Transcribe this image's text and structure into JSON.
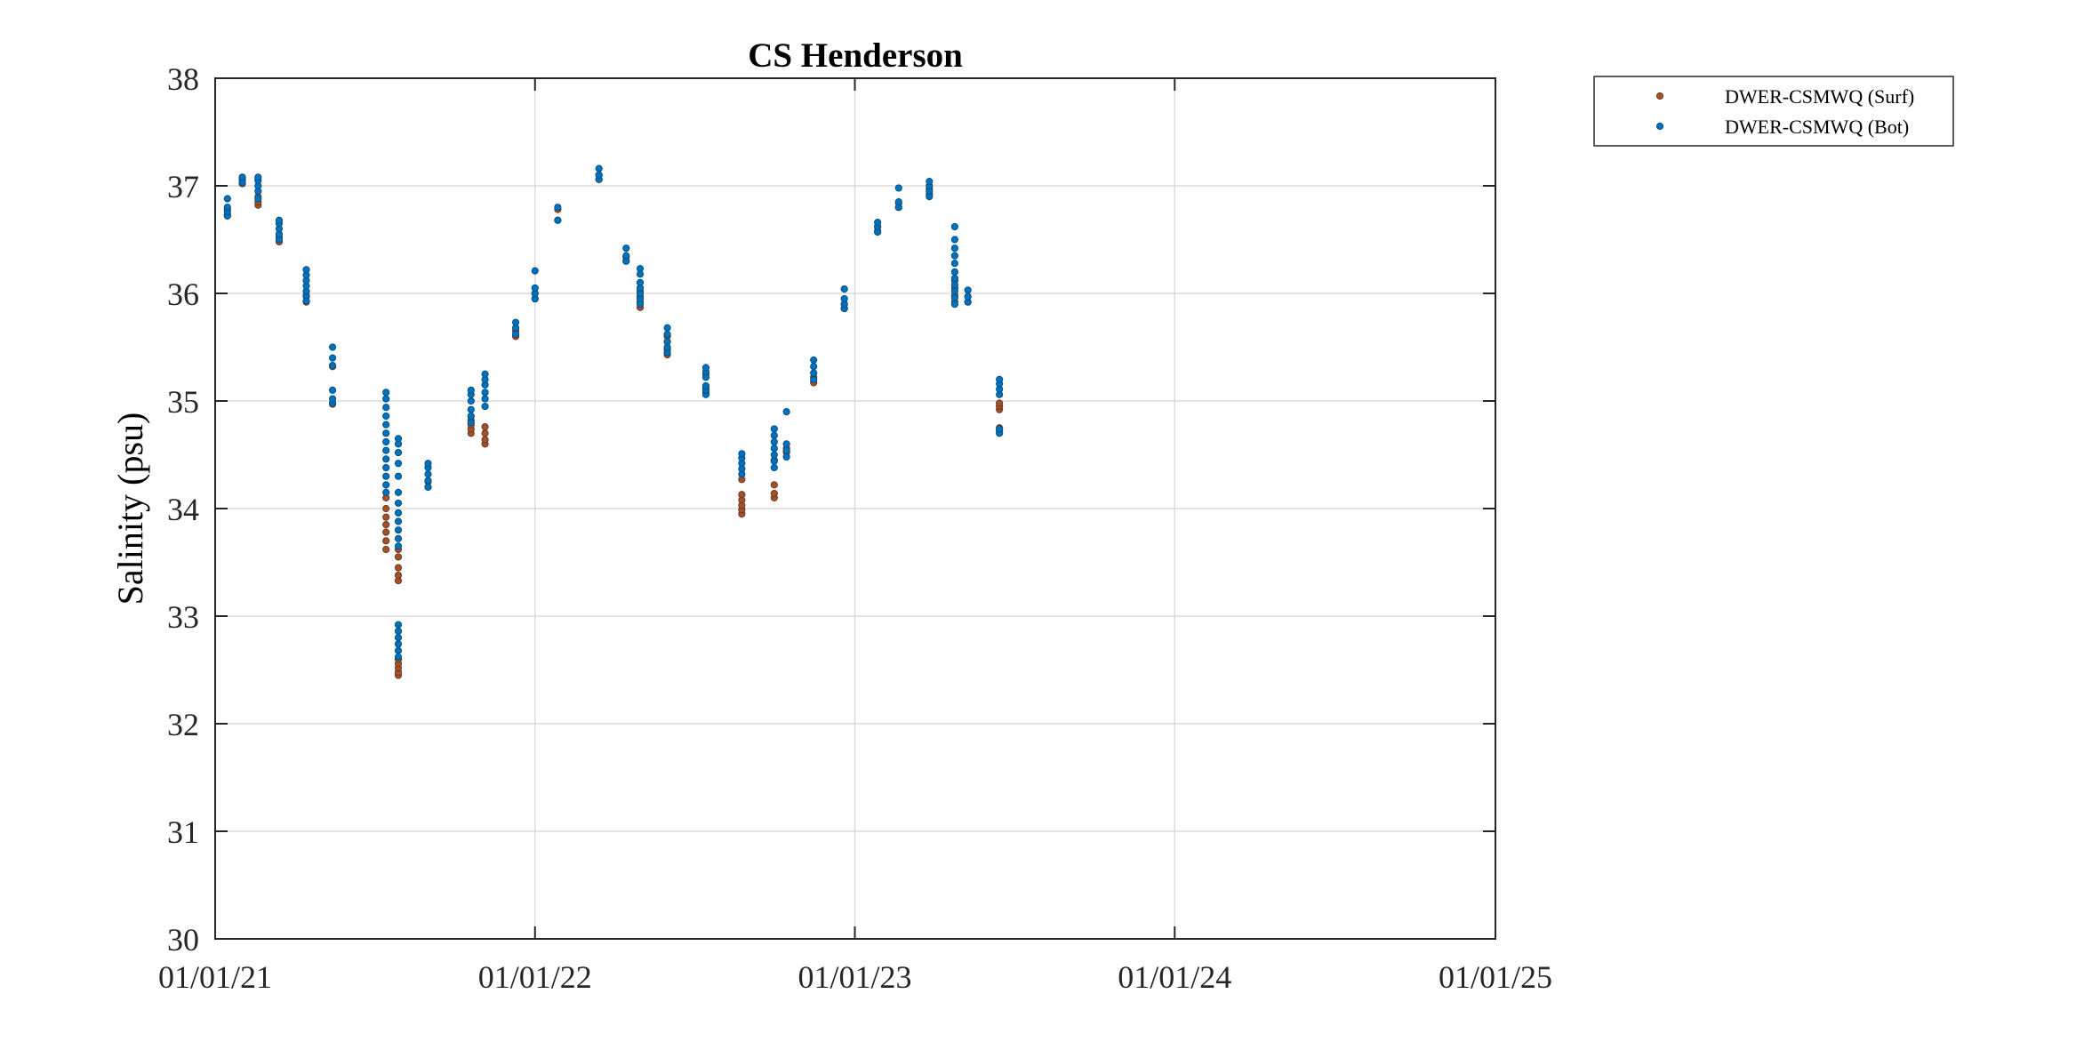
{
  "chart_data": {
    "type": "scatter",
    "title": "CS Henderson",
    "xlabel": "",
    "ylabel": "Salinity (psu)",
    "xlim": [
      "2021-01-01",
      "2025-01-01"
    ],
    "ylim": [
      30,
      38
    ],
    "x_ticks": [
      "2021-01-01",
      "2022-01-01",
      "2023-01-01",
      "2024-01-01",
      "2025-01-01"
    ],
    "x_tick_labels": [
      "01/01/21",
      "01/01/22",
      "01/01/23",
      "01/01/24",
      "01/01/25"
    ],
    "y_ticks": [
      30,
      31,
      32,
      33,
      34,
      35,
      36,
      37,
      38
    ],
    "y_tick_labels": [
      "30",
      "31",
      "32",
      "33",
      "34",
      "35",
      "36",
      "37",
      "38"
    ],
    "grid": true,
    "legend_position": "outside top-right",
    "series": [
      {
        "name": "DWER-CSMWQ (Surf)",
        "color": "#a0522d",
        "points": [
          [
            "2021-01-15",
            36.73
          ],
          [
            "2021-01-15",
            36.78
          ],
          [
            "2021-02-01",
            37.02
          ],
          [
            "2021-02-01",
            37.06
          ],
          [
            "2021-02-19",
            36.82
          ],
          [
            "2021-02-19",
            36.85
          ],
          [
            "2021-02-19",
            36.9
          ],
          [
            "2021-03-15",
            36.48
          ],
          [
            "2021-03-15",
            36.52
          ],
          [
            "2021-04-15",
            35.92
          ],
          [
            "2021-04-15",
            35.97
          ],
          [
            "2021-05-15",
            34.97
          ],
          [
            "2021-05-15",
            35.32
          ],
          [
            "2021-07-15",
            33.62
          ],
          [
            "2021-07-15",
            33.7
          ],
          [
            "2021-07-15",
            33.78
          ],
          [
            "2021-07-15",
            33.85
          ],
          [
            "2021-07-15",
            33.92
          ],
          [
            "2021-07-15",
            34.0
          ],
          [
            "2021-07-15",
            34.1
          ],
          [
            "2021-07-29",
            32.45
          ],
          [
            "2021-07-29",
            32.48
          ],
          [
            "2021-07-29",
            32.52
          ],
          [
            "2021-07-29",
            32.56
          ],
          [
            "2021-07-29",
            32.6
          ],
          [
            "2021-07-29",
            33.33
          ],
          [
            "2021-07-29",
            33.38
          ],
          [
            "2021-07-29",
            33.45
          ],
          [
            "2021-07-29",
            33.55
          ],
          [
            "2021-07-29",
            33.62
          ],
          [
            "2021-09-01",
            34.2
          ],
          [
            "2021-09-01",
            34.25
          ],
          [
            "2021-10-20",
            34.7
          ],
          [
            "2021-10-20",
            34.74
          ],
          [
            "2021-10-20",
            34.78
          ],
          [
            "2021-10-20",
            34.82
          ],
          [
            "2021-11-05",
            34.6
          ],
          [
            "2021-11-05",
            34.64
          ],
          [
            "2021-11-05",
            34.7
          ],
          [
            "2021-11-05",
            34.76
          ],
          [
            "2021-12-10",
            35.6
          ],
          [
            "2021-12-10",
            35.65
          ],
          [
            "2022-01-01",
            35.95
          ],
          [
            "2022-01-01",
            36.0
          ],
          [
            "2022-01-27",
            36.68
          ],
          [
            "2022-01-27",
            36.78
          ],
          [
            "2022-03-15",
            37.06
          ],
          [
            "2022-03-15",
            37.1
          ],
          [
            "2022-04-15",
            36.3
          ],
          [
            "2022-04-15",
            36.34
          ],
          [
            "2022-05-01",
            35.87
          ],
          [
            "2022-05-01",
            35.92
          ],
          [
            "2022-05-01",
            35.97
          ],
          [
            "2022-05-01",
            36.02
          ],
          [
            "2022-06-01",
            35.43
          ],
          [
            "2022-06-01",
            35.48
          ],
          [
            "2022-06-01",
            35.6
          ],
          [
            "2022-07-15",
            35.08
          ],
          [
            "2022-07-15",
            35.12
          ],
          [
            "2022-07-15",
            35.25
          ],
          [
            "2022-08-25",
            33.95
          ],
          [
            "2022-08-25",
            33.99
          ],
          [
            "2022-08-25",
            34.03
          ],
          [
            "2022-08-25",
            34.08
          ],
          [
            "2022-08-25",
            34.13
          ],
          [
            "2022-08-25",
            34.27
          ],
          [
            "2022-10-01",
            34.1
          ],
          [
            "2022-10-01",
            34.14
          ],
          [
            "2022-10-01",
            34.22
          ],
          [
            "2022-10-01",
            34.45
          ],
          [
            "2022-10-15",
            34.52
          ],
          [
            "2022-10-15",
            34.56
          ],
          [
            "2022-11-15",
            35.17
          ],
          [
            "2022-11-15",
            35.22
          ],
          [
            "2022-12-20",
            35.86
          ],
          [
            "2022-12-20",
            35.9
          ],
          [
            "2023-01-27",
            36.58
          ],
          [
            "2023-01-27",
            36.62
          ],
          [
            "2023-02-20",
            36.8
          ],
          [
            "2023-02-20",
            36.84
          ],
          [
            "2023-03-27",
            36.92
          ],
          [
            "2023-03-27",
            36.97
          ],
          [
            "2023-04-25",
            35.92
          ],
          [
            "2023-04-25",
            35.98
          ],
          [
            "2023-04-25",
            36.05
          ],
          [
            "2023-04-25",
            36.12
          ],
          [
            "2023-05-10",
            35.92
          ],
          [
            "2023-05-10",
            35.97
          ],
          [
            "2023-06-15",
            34.72
          ],
          [
            "2023-06-15",
            34.75
          ],
          [
            "2023-06-15",
            34.92
          ],
          [
            "2023-06-15",
            34.95
          ],
          [
            "2023-06-15",
            34.98
          ]
        ]
      },
      {
        "name": "DWER-CSMWQ (Bot)",
        "color": "#0072bd",
        "points": [
          [
            "2021-01-15",
            36.72
          ],
          [
            "2021-01-15",
            36.76
          ],
          [
            "2021-01-15",
            36.8
          ],
          [
            "2021-01-15",
            36.88
          ],
          [
            "2021-02-01",
            37.03
          ],
          [
            "2021-02-01",
            37.08
          ],
          [
            "2021-02-19",
            36.88
          ],
          [
            "2021-02-19",
            36.95
          ],
          [
            "2021-02-19",
            37.0
          ],
          [
            "2021-02-19",
            37.05
          ],
          [
            "2021-02-19",
            37.08
          ],
          [
            "2021-03-15",
            36.5
          ],
          [
            "2021-03-15",
            36.55
          ],
          [
            "2021-03-15",
            36.6
          ],
          [
            "2021-03-15",
            36.65
          ],
          [
            "2021-03-15",
            36.68
          ],
          [
            "2021-04-15",
            35.93
          ],
          [
            "2021-04-15",
            35.98
          ],
          [
            "2021-04-15",
            36.02
          ],
          [
            "2021-04-15",
            36.07
          ],
          [
            "2021-04-15",
            36.12
          ],
          [
            "2021-04-15",
            36.17
          ],
          [
            "2021-04-15",
            36.22
          ],
          [
            "2021-05-15",
            34.98
          ],
          [
            "2021-05-15",
            35.02
          ],
          [
            "2021-05-15",
            35.1
          ],
          [
            "2021-05-15",
            35.33
          ],
          [
            "2021-05-15",
            35.4
          ],
          [
            "2021-05-15",
            35.5
          ],
          [
            "2021-07-15",
            34.15
          ],
          [
            "2021-07-15",
            34.22
          ],
          [
            "2021-07-15",
            34.3
          ],
          [
            "2021-07-15",
            34.38
          ],
          [
            "2021-07-15",
            34.46
          ],
          [
            "2021-07-15",
            34.54
          ],
          [
            "2021-07-15",
            34.62
          ],
          [
            "2021-07-15",
            34.7
          ],
          [
            "2021-07-15",
            34.78
          ],
          [
            "2021-07-15",
            34.86
          ],
          [
            "2021-07-15",
            34.94
          ],
          [
            "2021-07-15",
            35.02
          ],
          [
            "2021-07-15",
            35.08
          ],
          [
            "2021-07-29",
            32.62
          ],
          [
            "2021-07-29",
            32.68
          ],
          [
            "2021-07-29",
            32.74
          ],
          [
            "2021-07-29",
            32.8
          ],
          [
            "2021-07-29",
            32.86
          ],
          [
            "2021-07-29",
            32.92
          ],
          [
            "2021-07-29",
            33.65
          ],
          [
            "2021-07-29",
            33.72
          ],
          [
            "2021-07-29",
            33.8
          ],
          [
            "2021-07-29",
            33.88
          ],
          [
            "2021-07-29",
            33.96
          ],
          [
            "2021-07-29",
            34.05
          ],
          [
            "2021-07-29",
            34.15
          ],
          [
            "2021-07-29",
            34.3
          ],
          [
            "2021-07-29",
            34.42
          ],
          [
            "2021-07-29",
            34.52
          ],
          [
            "2021-07-29",
            34.6
          ],
          [
            "2021-07-29",
            34.65
          ],
          [
            "2021-09-01",
            34.2
          ],
          [
            "2021-09-01",
            34.26
          ],
          [
            "2021-09-01",
            34.32
          ],
          [
            "2021-09-01",
            34.38
          ],
          [
            "2021-09-01",
            34.42
          ],
          [
            "2021-10-20",
            34.8
          ],
          [
            "2021-10-20",
            34.86
          ],
          [
            "2021-10-20",
            34.92
          ],
          [
            "2021-10-20",
            35.0
          ],
          [
            "2021-10-20",
            35.06
          ],
          [
            "2021-10-20",
            35.1
          ],
          [
            "2021-11-05",
            34.95
          ],
          [
            "2021-11-05",
            35.02
          ],
          [
            "2021-11-05",
            35.08
          ],
          [
            "2021-11-05",
            35.15
          ],
          [
            "2021-11-05",
            35.2
          ],
          [
            "2021-11-05",
            35.25
          ],
          [
            "2021-12-10",
            35.62
          ],
          [
            "2021-12-10",
            35.68
          ],
          [
            "2021-12-10",
            35.73
          ],
          [
            "2022-01-01",
            35.95
          ],
          [
            "2022-01-01",
            36.0
          ],
          [
            "2022-01-01",
            36.05
          ],
          [
            "2022-01-01",
            36.21
          ],
          [
            "2022-01-27",
            36.68
          ],
          [
            "2022-01-27",
            36.8
          ],
          [
            "2022-03-15",
            37.06
          ],
          [
            "2022-03-15",
            37.1
          ],
          [
            "2022-03-15",
            37.16
          ],
          [
            "2022-04-15",
            36.3
          ],
          [
            "2022-04-15",
            36.35
          ],
          [
            "2022-04-15",
            36.42
          ],
          [
            "2022-05-01",
            35.9
          ],
          [
            "2022-05-01",
            35.95
          ],
          [
            "2022-05-01",
            36.0
          ],
          [
            "2022-05-01",
            36.05
          ],
          [
            "2022-05-01",
            36.1
          ],
          [
            "2022-05-01",
            36.18
          ],
          [
            "2022-05-01",
            36.23
          ],
          [
            "2022-06-01",
            35.45
          ],
          [
            "2022-06-01",
            35.5
          ],
          [
            "2022-06-01",
            35.55
          ],
          [
            "2022-06-01",
            35.62
          ],
          [
            "2022-06-01",
            35.68
          ],
          [
            "2022-07-15",
            35.06
          ],
          [
            "2022-07-15",
            35.1
          ],
          [
            "2022-07-15",
            35.14
          ],
          [
            "2022-07-15",
            35.22
          ],
          [
            "2022-07-15",
            35.27
          ],
          [
            "2022-07-15",
            35.31
          ],
          [
            "2022-08-25",
            34.32
          ],
          [
            "2022-08-25",
            34.37
          ],
          [
            "2022-08-25",
            34.42
          ],
          [
            "2022-08-25",
            34.47
          ],
          [
            "2022-08-25",
            34.51
          ],
          [
            "2022-10-01",
            34.38
          ],
          [
            "2022-10-01",
            34.44
          ],
          [
            "2022-10-01",
            34.5
          ],
          [
            "2022-10-01",
            34.56
          ],
          [
            "2022-10-01",
            34.62
          ],
          [
            "2022-10-01",
            34.68
          ],
          [
            "2022-10-01",
            34.74
          ],
          [
            "2022-10-15",
            34.48
          ],
          [
            "2022-10-15",
            34.54
          ],
          [
            "2022-10-15",
            34.6
          ],
          [
            "2022-10-15",
            34.9
          ],
          [
            "2022-11-15",
            35.2
          ],
          [
            "2022-11-15",
            35.26
          ],
          [
            "2022-11-15",
            35.32
          ],
          [
            "2022-11-15",
            35.38
          ],
          [
            "2022-12-20",
            35.86
          ],
          [
            "2022-12-20",
            35.9
          ],
          [
            "2022-12-20",
            35.95
          ],
          [
            "2022-12-20",
            36.04
          ],
          [
            "2023-01-27",
            36.57
          ],
          [
            "2023-01-27",
            36.62
          ],
          [
            "2023-01-27",
            36.66
          ],
          [
            "2023-02-20",
            36.8
          ],
          [
            "2023-02-20",
            36.85
          ],
          [
            "2023-02-20",
            36.98
          ],
          [
            "2023-03-27",
            36.9
          ],
          [
            "2023-03-27",
            36.95
          ],
          [
            "2023-03-27",
            37.0
          ],
          [
            "2023-03-27",
            37.04
          ],
          [
            "2023-04-25",
            35.9
          ],
          [
            "2023-04-25",
            35.96
          ],
          [
            "2023-04-25",
            36.02
          ],
          [
            "2023-04-25",
            36.08
          ],
          [
            "2023-04-25",
            36.14
          ],
          [
            "2023-04-25",
            36.2
          ],
          [
            "2023-04-25",
            36.28
          ],
          [
            "2023-04-25",
            36.35
          ],
          [
            "2023-04-25",
            36.42
          ],
          [
            "2023-04-25",
            36.5
          ],
          [
            "2023-04-25",
            36.62
          ],
          [
            "2023-05-10",
            35.92
          ],
          [
            "2023-05-10",
            35.97
          ],
          [
            "2023-05-10",
            36.03
          ],
          [
            "2023-06-15",
            34.7
          ],
          [
            "2023-06-15",
            34.74
          ],
          [
            "2023-06-15",
            35.06
          ],
          [
            "2023-06-15",
            35.11
          ],
          [
            "2023-06-15",
            35.16
          ],
          [
            "2023-06-15",
            35.2
          ]
        ]
      }
    ]
  }
}
